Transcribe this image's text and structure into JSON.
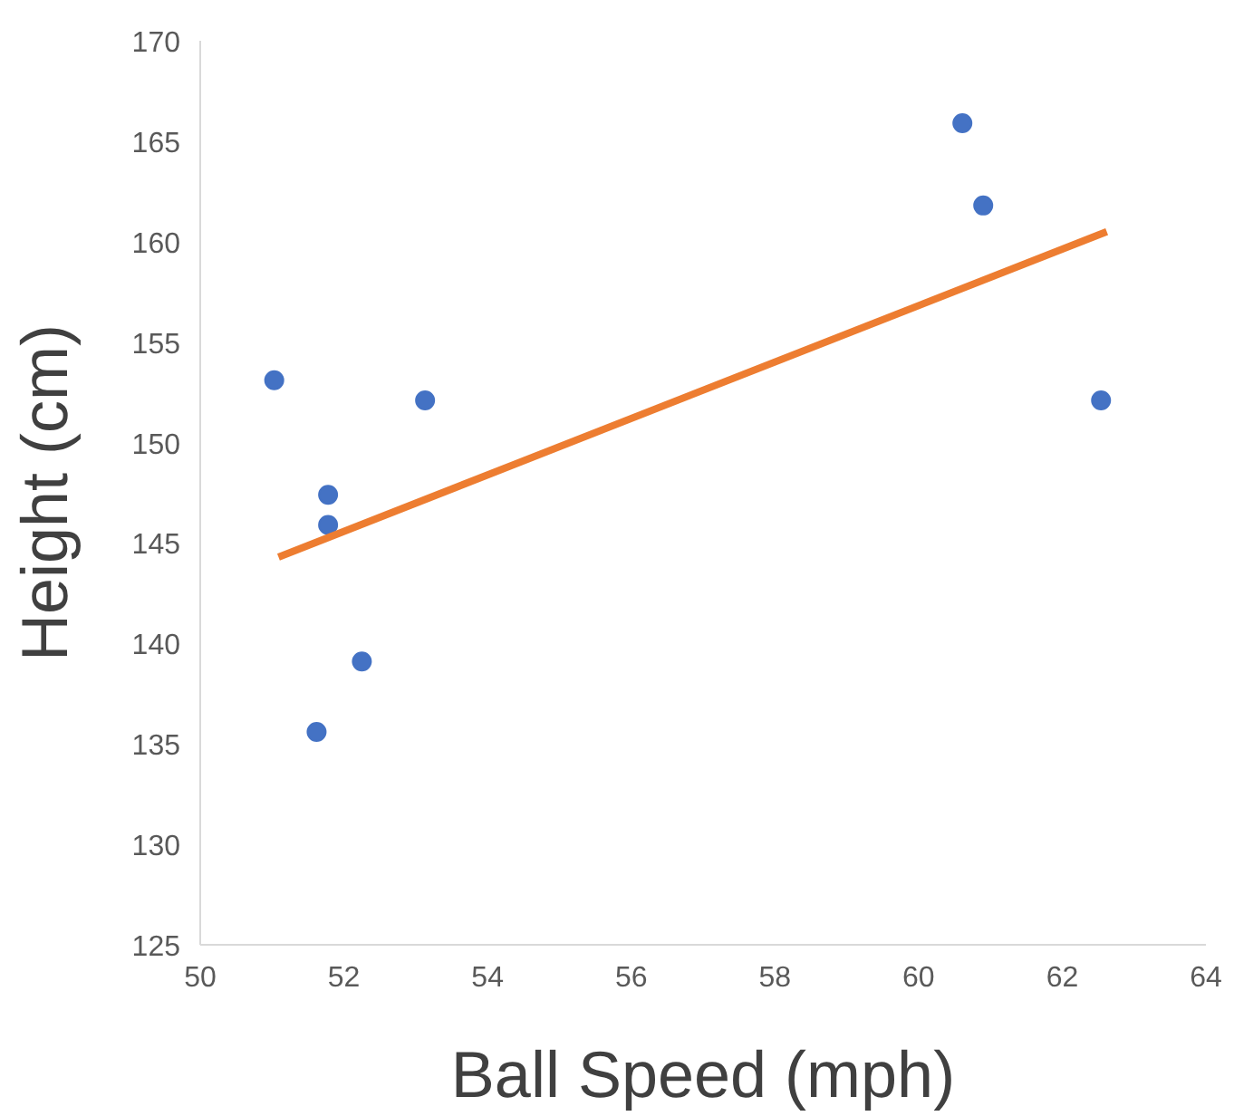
{
  "chart_data": {
    "type": "scatter",
    "xlabel": "Ball Speed (mph)",
    "ylabel": "Height (cm)",
    "xlim": [
      50,
      64
    ],
    "xticks": [
      50,
      52,
      54,
      56,
      58,
      60,
      62,
      64
    ],
    "ylim": [
      125,
      170
    ],
    "yticks": [
      125,
      130,
      135,
      140,
      145,
      150,
      155,
      160,
      165,
      170
    ],
    "grid": false,
    "series": [
      {
        "marker": "circle",
        "color": "#4472c4",
        "x": [
          51.03,
          51.78,
          51.78,
          51.62,
          52.25,
          53.13,
          60.61,
          60.9,
          62.54
        ],
        "values": [
          153.1,
          147.4,
          145.9,
          135.6,
          139.1,
          152.1,
          165.9,
          161.8,
          152.1
        ]
      },
      {
        "type": "line",
        "color": "#ed7d31",
        "x": [
          51.09,
          62.62
        ],
        "values": [
          144.3,
          160.5
        ]
      }
    ]
  }
}
